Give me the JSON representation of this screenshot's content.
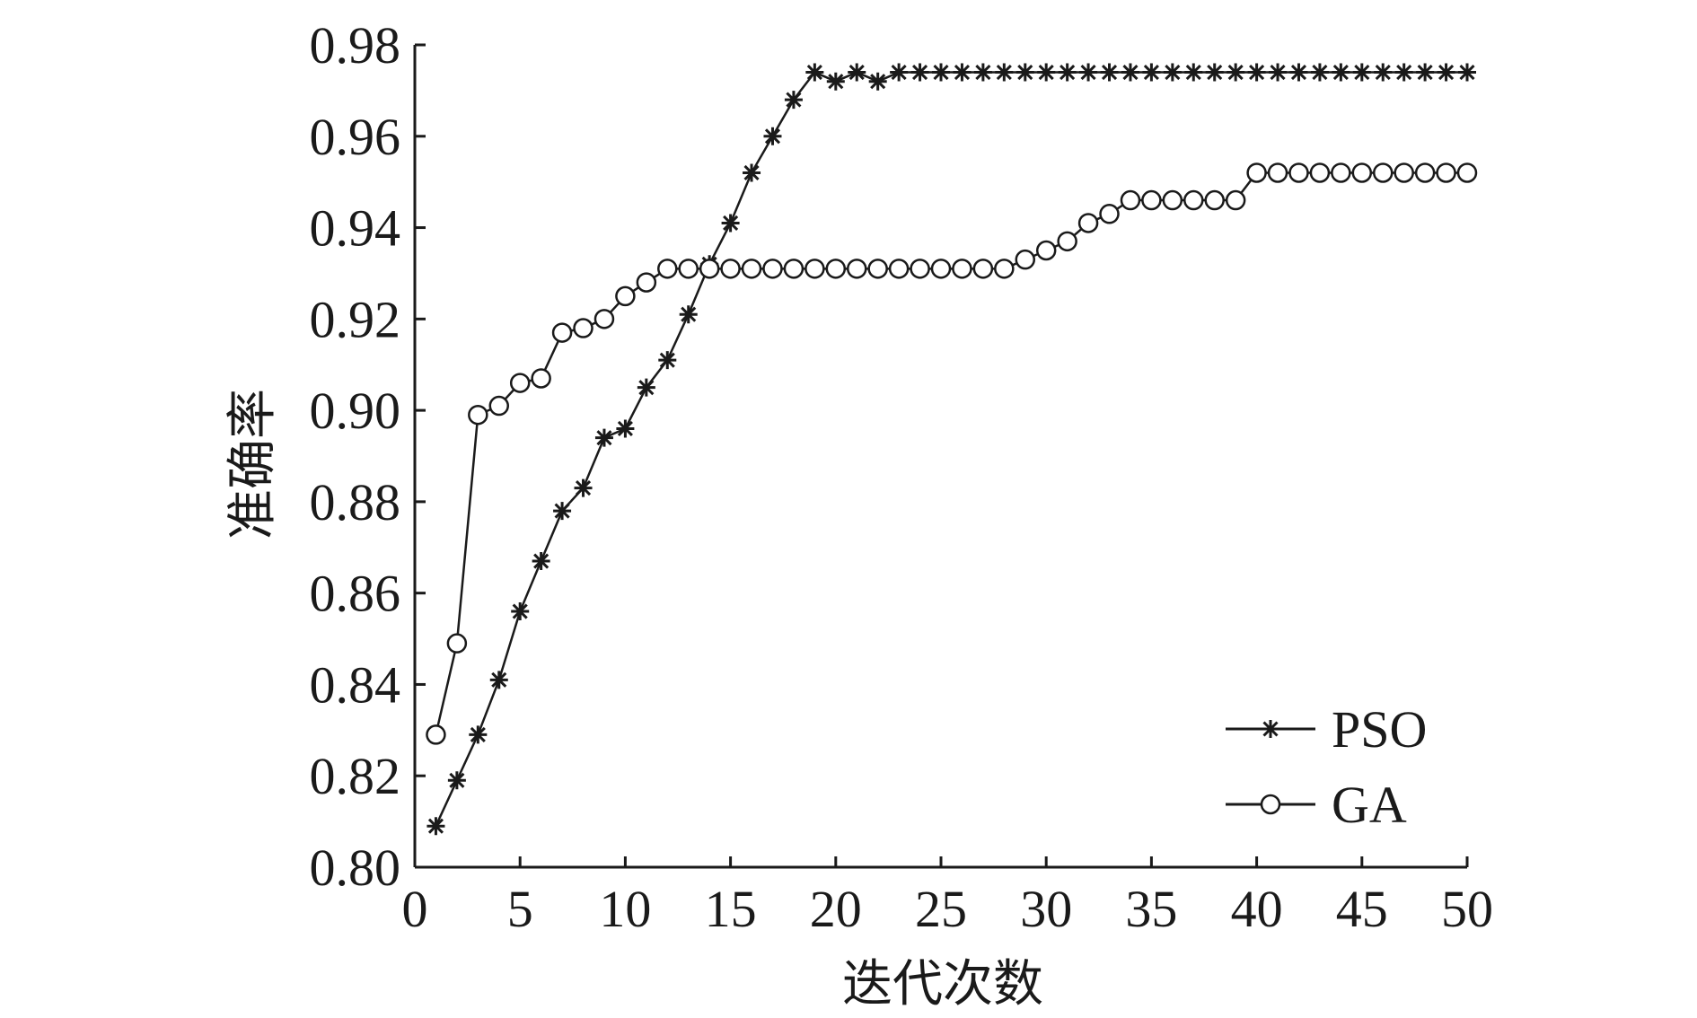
{
  "chart_data": {
    "type": "line",
    "title": "",
    "xlabel": "迭代次数",
    "ylabel": "准确率",
    "xlim": [
      0,
      50
    ],
    "ylim": [
      0.8,
      0.98
    ],
    "xticks": [
      0,
      5,
      10,
      15,
      20,
      25,
      30,
      35,
      40,
      45,
      50
    ],
    "xtick_labels": [
      "0",
      "5",
      "10",
      "15",
      "20",
      "25",
      "30",
      "35",
      "40",
      "45",
      "50"
    ],
    "yticks": [
      0.8,
      0.82,
      0.84,
      0.86,
      0.88,
      0.9,
      0.92,
      0.94,
      0.96,
      0.98
    ],
    "ytick_labels": [
      "0.80",
      "0.82",
      "0.84",
      "0.86",
      "0.88",
      "0.90",
      "0.92",
      "0.94",
      "0.96",
      "0.98"
    ],
    "grid": false,
    "legend_position": "bottom-right",
    "color": "#1a1a1a",
    "x": [
      1,
      2,
      3,
      4,
      5,
      6,
      7,
      8,
      9,
      10,
      11,
      12,
      13,
      14,
      15,
      16,
      17,
      18,
      19,
      20,
      21,
      22,
      23,
      24,
      25,
      26,
      27,
      28,
      29,
      30,
      31,
      32,
      33,
      34,
      35,
      36,
      37,
      38,
      39,
      40,
      41,
      42,
      43,
      44,
      45,
      46,
      47,
      48,
      49,
      50
    ],
    "series": [
      {
        "name": "PSO",
        "marker": "star",
        "values": [
          0.809,
          0.819,
          0.829,
          0.841,
          0.856,
          0.867,
          0.878,
          0.883,
          0.894,
          0.896,
          0.905,
          0.911,
          0.921,
          0.932,
          0.941,
          0.952,
          0.96,
          0.968,
          0.974,
          0.972,
          0.974,
          0.972,
          0.974,
          0.974,
          0.974,
          0.974,
          0.974,
          0.974,
          0.974,
          0.974,
          0.974,
          0.974,
          0.974,
          0.974,
          0.974,
          0.974,
          0.974,
          0.974,
          0.974,
          0.974,
          0.974,
          0.974,
          0.974,
          0.974,
          0.974,
          0.974,
          0.974,
          0.974,
          0.974,
          0.974
        ]
      },
      {
        "name": "GA",
        "marker": "circle",
        "values": [
          0.829,
          0.849,
          0.899,
          0.901,
          0.906,
          0.907,
          0.917,
          0.918,
          0.92,
          0.925,
          0.928,
          0.931,
          0.931,
          0.931,
          0.931,
          0.931,
          0.931,
          0.931,
          0.931,
          0.931,
          0.931,
          0.931,
          0.931,
          0.931,
          0.931,
          0.931,
          0.931,
          0.931,
          0.933,
          0.935,
          0.937,
          0.941,
          0.943,
          0.946,
          0.946,
          0.946,
          0.946,
          0.946,
          0.946,
          0.952,
          0.952,
          0.952,
          0.952,
          0.952,
          0.952,
          0.952,
          0.952,
          0.952,
          0.952,
          0.952
        ]
      }
    ]
  }
}
